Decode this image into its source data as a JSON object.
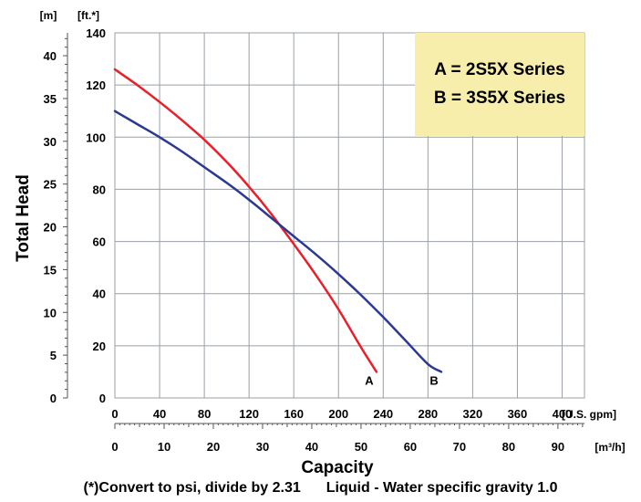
{
  "chart_data": {
    "type": "line",
    "ylabel": "Total Head",
    "xlabel": "Capacity",
    "y_left_unit": "[m]",
    "y_right_unit": "[ft.*]",
    "x_top_unit": "[U.S. gpm]",
    "x_bottom_unit": "[m³/h]",
    "xlim_gpm": [
      0,
      420
    ],
    "ylim_ft": [
      0,
      140
    ],
    "ylim_m": [
      0,
      42.67
    ],
    "x_gpm_ticks": [
      "0",
      "40",
      "80",
      "120",
      "160",
      "200",
      "240",
      "280",
      "320",
      "360",
      "400"
    ],
    "x_m3h_ticks": [
      "0",
      "10",
      "20",
      "30",
      "40",
      "50",
      "60",
      "70",
      "80",
      "90"
    ],
    "y_ft_ticks": [
      "0",
      "20",
      "40",
      "60",
      "80",
      "100",
      "120",
      "140"
    ],
    "y_m_ticks": [
      "0",
      "5",
      "10",
      "15",
      "20",
      "25",
      "30",
      "35",
      "40"
    ],
    "grid": true,
    "legend": {
      "position": "top-right",
      "background": "#f6eeaa",
      "entries": [
        "A = 2S5X Series",
        "B = 3S5X Series"
      ]
    },
    "series": [
      {
        "name": "A",
        "color": "#e8202a",
        "x_gpm": [
          0,
          20,
          40,
          60,
          80,
          100,
          120,
          140,
          160,
          180,
          200,
          220,
          234
        ],
        "y_ft": [
          126,
          120,
          113.5,
          106.5,
          99,
          90.5,
          81,
          70.5,
          59,
          47,
          34,
          19.5,
          10
        ]
      },
      {
        "name": "B",
        "color": "#2b3990",
        "x_gpm": [
          0,
          20,
          40,
          60,
          80,
          100,
          120,
          140,
          160,
          180,
          200,
          220,
          240,
          260,
          280,
          292
        ],
        "y_ft": [
          110,
          105,
          100,
          94.5,
          88.5,
          82.5,
          76,
          69,
          62,
          55,
          47.5,
          39.5,
          31,
          22,
          13,
          10
        ]
      }
    ]
  },
  "footnote": {
    "left": "(*)Convert to psi, divide by 2.31",
    "right": "Liquid - Water specific gravity 1.0"
  }
}
